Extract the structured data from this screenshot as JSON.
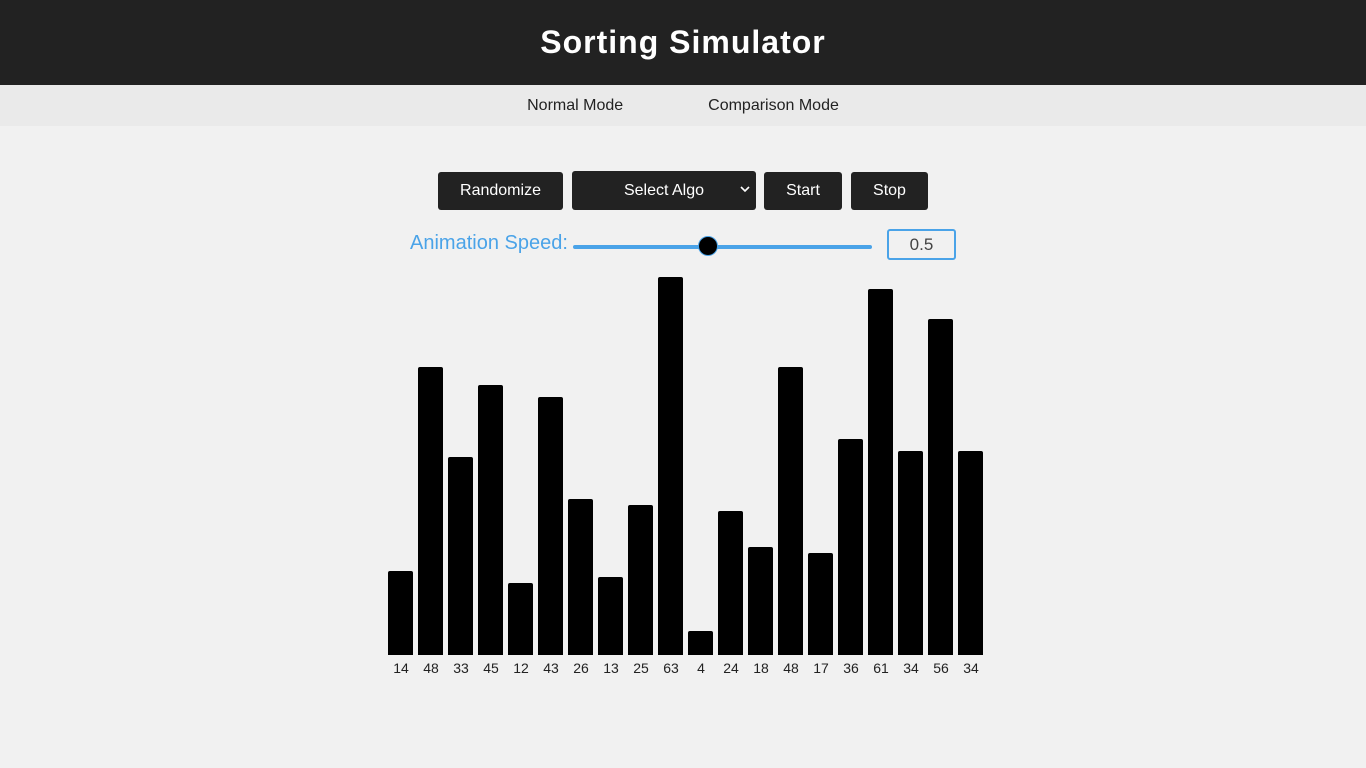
{
  "header": {
    "title": "Sorting Simulator"
  },
  "modes": [
    {
      "label": "Normal Mode"
    },
    {
      "label": "Comparison Mode"
    }
  ],
  "controls": {
    "randomize_label": "Randomize",
    "select_label": "Select Algo",
    "start_label": "Start",
    "stop_label": "Stop"
  },
  "speed": {
    "label": "Animation Speed:",
    "value": "0.5",
    "fraction": 0.45
  },
  "colors": {
    "accent": "#4aa3e8",
    "header_bg": "#222222",
    "bar": "#000000"
  },
  "chart_data": {
    "type": "bar",
    "values": [
      14,
      48,
      33,
      45,
      12,
      43,
      26,
      13,
      25,
      63,
      4,
      24,
      18,
      48,
      17,
      36,
      61,
      34,
      56,
      34
    ]
  }
}
